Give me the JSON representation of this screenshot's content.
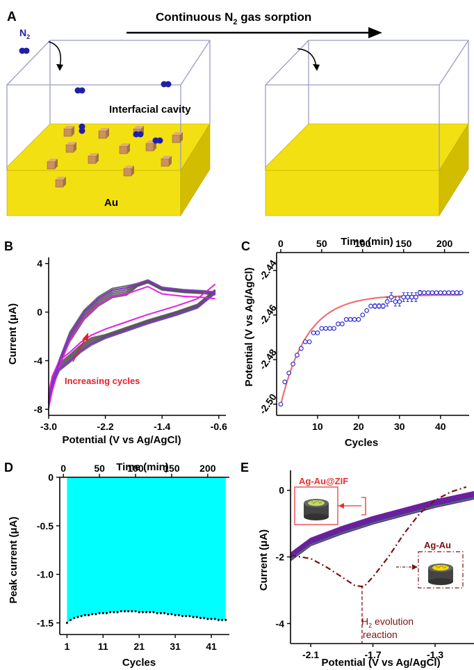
{
  "panel_A": {
    "letter": "A",
    "arrow_label_pre": "Continuous N",
    "arrow_label_sub": "2",
    "arrow_label_post": " gas sorption",
    "n2_label_pre": "N",
    "n2_label_sub": "2",
    "cavity_label": "Interfacial cavity",
    "substrate_label": "Au",
    "colors": {
      "gold": "#f3e012",
      "gold_side": "#d2bd00",
      "cube": "#c8925a",
      "molecule": "#1f1fa8",
      "box_edge": "#9a9acb"
    }
  },
  "panel_labels": {
    "B": "B",
    "C": "C",
    "D": "D",
    "E": "E"
  },
  "chart_data": [
    {
      "id": "B",
      "type": "line",
      "xlabel": "Potential (V vs Ag/AgCl)",
      "ylabel": "Current (μA)",
      "xlim": [
        -3.0,
        -0.5
      ],
      "ylim": [
        -8.5,
        4.5
      ],
      "xticks": [
        -3.0,
        -2.2,
        -1.4,
        -0.6
      ],
      "xtick_labels": [
        "-3.0",
        "-2.2",
        "-1.4",
        "-0.6"
      ],
      "yticks": [
        -8,
        -4,
        0,
        4
      ],
      "ytick_labels": [
        "-8",
        "-4",
        "0",
        "4"
      ],
      "annotation": "Increasing cycles",
      "colors": {
        "first": "#e61ee6",
        "cycles": "#555555",
        "last": "#8a2be2",
        "annotation": "#e8202a"
      },
      "curve_forward": [
        [
          -3.0,
          -7.4
        ],
        [
          -2.95,
          -6.0
        ],
        [
          -2.85,
          -4.7
        ],
        [
          -2.7,
          -4.0
        ],
        [
          -2.55,
          -3.2
        ],
        [
          -2.4,
          -2.6
        ],
        [
          -2.2,
          -2.1
        ],
        [
          -1.9,
          -1.5
        ],
        [
          -1.6,
          -0.9
        ],
        [
          -1.2,
          -0.2
        ],
        [
          -0.9,
          0.4
        ],
        [
          -0.65,
          1.6
        ]
      ],
      "curve_reverse": [
        [
          -0.65,
          1.6
        ],
        [
          -0.8,
          1.7
        ],
        [
          -1.1,
          1.8
        ],
        [
          -1.4,
          2.0
        ],
        [
          -1.6,
          2.6
        ],
        [
          -1.75,
          2.3
        ],
        [
          -1.9,
          2.0
        ],
        [
          -2.1,
          1.8
        ],
        [
          -2.3,
          1.1
        ],
        [
          -2.5,
          0.0
        ],
        [
          -2.7,
          -1.8
        ],
        [
          -2.85,
          -4.0
        ],
        [
          -2.95,
          -6.0
        ],
        [
          -3.0,
          -7.4
        ]
      ]
    },
    {
      "id": "C",
      "type": "scatter",
      "xlabel": "Cycles",
      "ylabel": "Potential (V vs Ag/AgCl)",
      "top_xlabel": "Time (min)",
      "xlim": [
        0,
        47
      ],
      "ylim": [
        -2.505,
        -2.432
      ],
      "xticks": [
        10,
        20,
        30,
        40
      ],
      "yticks": [
        -2.5,
        -2.48,
        -2.46,
        -2.44
      ],
      "ytick_labels": [
        "-2.50",
        "-2.48",
        "-2.46",
        "-2.44"
      ],
      "top_xticks": [
        0,
        50,
        100,
        150,
        200
      ],
      "top_xlim": [
        -5,
        230
      ],
      "colors": {
        "points": "#2b2bd8",
        "fit": "#f07070"
      },
      "x": [
        1,
        2,
        3,
        4,
        5,
        6,
        7,
        8,
        9,
        10,
        11,
        12,
        13,
        14,
        15,
        16,
        17,
        18,
        19,
        20,
        21,
        22,
        23,
        24,
        25,
        26,
        27,
        28,
        29,
        30,
        31,
        32,
        33,
        34,
        35,
        36,
        37,
        38,
        39,
        40,
        41,
        42,
        43,
        44,
        45
      ],
      "y": [
        -2.5,
        -2.49,
        -2.486,
        -2.482,
        -2.478,
        -2.475,
        -2.472,
        -2.472,
        -2.468,
        -2.468,
        -2.466,
        -2.466,
        -2.466,
        -2.466,
        -2.464,
        -2.464,
        -2.462,
        -2.462,
        -2.462,
        -2.462,
        -2.46,
        -2.458,
        -2.456,
        -2.456,
        -2.456,
        -2.456,
        -2.454,
        -2.452,
        -2.454,
        -2.454,
        -2.452,
        -2.452,
        -2.452,
        -2.452,
        -2.45,
        -2.45,
        -2.45,
        -2.45,
        -2.45,
        -2.45,
        -2.45,
        -2.45,
        -2.45,
        -2.45,
        -2.45
      ],
      "err": [
        0,
        0,
        0,
        0,
        0,
        0,
        0,
        0,
        0,
        0,
        0,
        0,
        0,
        0,
        0,
        0,
        0,
        0,
        0,
        0,
        0,
        0,
        0,
        0.001,
        0.001,
        0.001,
        0.002,
        0.002,
        0.002,
        0.002,
        0.002,
        0.002,
        0.002,
        0.002,
        0.001,
        0,
        0,
        0,
        0,
        0,
        0,
        0,
        0,
        0,
        0
      ],
      "fit": {
        "a": -2.451,
        "b": -0.058,
        "tau": 6.5
      }
    },
    {
      "id": "D",
      "type": "area",
      "xlabel": "Cycles",
      "ylabel": "Peak current (μA)",
      "top_xlabel": "Time (min)",
      "xlim": [
        -1,
        46
      ],
      "ylim": [
        -1.62,
        0
      ],
      "xticks": [
        1,
        11,
        21,
        31,
        41
      ],
      "yticks": [
        -1.5,
        -1.0,
        -0.5,
        0
      ],
      "ytick_labels": [
        "-1.5",
        "-1.0",
        "-0.5",
        "0"
      ],
      "top_xticks": [
        0,
        50,
        100,
        150,
        200
      ],
      "top_xlim": [
        -5,
        230
      ],
      "colors": {
        "fill": "#00ffff",
        "points": "#000000"
      },
      "x": [
        1,
        2,
        3,
        4,
        5,
        6,
        7,
        8,
        9,
        10,
        11,
        12,
        13,
        14,
        15,
        16,
        17,
        18,
        19,
        20,
        21,
        22,
        23,
        24,
        25,
        26,
        27,
        28,
        29,
        30,
        31,
        32,
        33,
        34,
        35,
        36,
        37,
        38,
        39,
        40,
        41,
        42,
        43,
        44,
        45
      ],
      "y": [
        -1.5,
        -1.47,
        -1.45,
        -1.44,
        -1.43,
        -1.42,
        -1.42,
        -1.41,
        -1.41,
        -1.4,
        -1.4,
        -1.4,
        -1.39,
        -1.39,
        -1.39,
        -1.38,
        -1.38,
        -1.38,
        -1.38,
        -1.38,
        -1.39,
        -1.39,
        -1.39,
        -1.39,
        -1.39,
        -1.4,
        -1.4,
        -1.4,
        -1.41,
        -1.41,
        -1.42,
        -1.42,
        -1.43,
        -1.43,
        -1.43,
        -1.44,
        -1.44,
        -1.45,
        -1.45,
        -1.46,
        -1.46,
        -1.46,
        -1.47,
        -1.47,
        -1.47
      ]
    },
    {
      "id": "E",
      "type": "line",
      "xlabel": "Potential (V vs Ag/AgCl)",
      "ylabel": "Current (μA)",
      "xlim": [
        -2.23,
        -1.05
      ],
      "ylim": [
        -4.6,
        0.6
      ],
      "xticks": [
        -2.1,
        -1.7,
        -1.3
      ],
      "xtick_labels": [
        "-2.1",
        "-1.7",
        "-1.3"
      ],
      "yticks": [
        -4,
        -2,
        0
      ],
      "ytick_labels": [
        "-4",
        "-2",
        "0"
      ],
      "labels": {
        "zif": "Ag-Au@ZIF",
        "agau": "Ag-Au",
        "h2_pre": "H",
        "h2_sub": "2",
        "h2_post": " evolution",
        "h2_line2": "reaction"
      },
      "colors": {
        "zif": "#6a1fa0",
        "zif_band": "#2e8b57",
        "agau": "#7a1010",
        "box_zif": "#e83030",
        "electrode": "#444444",
        "dots": "#e6e020"
      },
      "zif_curve": [
        [
          -2.23,
          -2.0
        ],
        [
          -2.1,
          -1.55
        ],
        [
          -1.9,
          -1.2
        ],
        [
          -1.7,
          -0.9
        ],
        [
          -1.5,
          -0.65
        ],
        [
          -1.3,
          -0.4
        ],
        [
          -1.05,
          -0.15
        ]
      ],
      "agau_curve": [
        [
          -2.23,
          -1.95
        ],
        [
          -2.1,
          -2.05
        ],
        [
          -2.0,
          -2.3
        ],
        [
          -1.9,
          -2.6
        ],
        [
          -1.82,
          -2.85
        ],
        [
          -1.76,
          -2.9
        ],
        [
          -1.7,
          -2.6
        ],
        [
          -1.6,
          -2.0
        ],
        [
          -1.5,
          -1.3
        ],
        [
          -1.4,
          -0.7
        ],
        [
          -1.3,
          -0.3
        ],
        [
          -1.2,
          -0.05
        ],
        [
          -1.1,
          0.1
        ]
      ],
      "h2_marker_x": -1.77
    }
  ]
}
